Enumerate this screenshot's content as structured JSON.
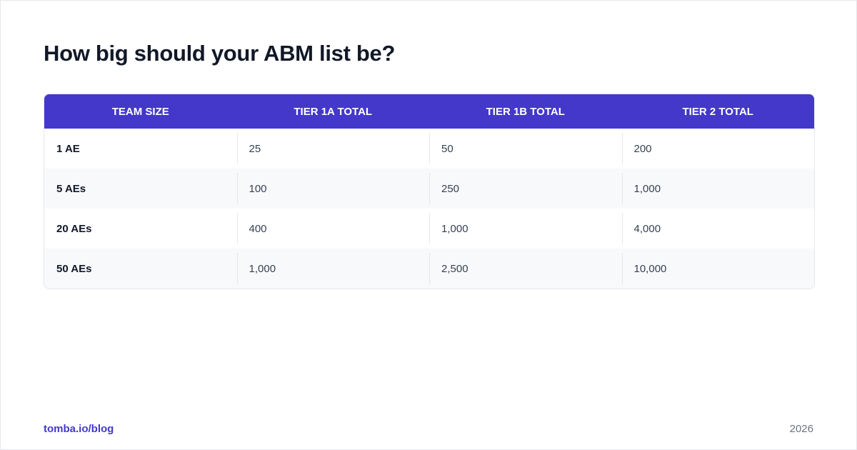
{
  "header": {
    "title": "How big should your ABM list be?"
  },
  "table": {
    "columns": [
      "TEAM SIZE",
      "TIER 1A TOTAL",
      "TIER 1B TOTAL",
      "TIER 2 TOTAL"
    ],
    "rows": [
      [
        "1 AE",
        "25",
        "50",
        "200"
      ],
      [
        "5 AEs",
        "100",
        "250",
        "1,000"
      ],
      [
        "20 AEs",
        "400",
        "1,000",
        "4,000"
      ],
      [
        "50 AEs",
        "1,000",
        "2,500",
        "10,000"
      ]
    ]
  },
  "footer": {
    "source": "tomba.io/blog",
    "year": "2026"
  }
}
